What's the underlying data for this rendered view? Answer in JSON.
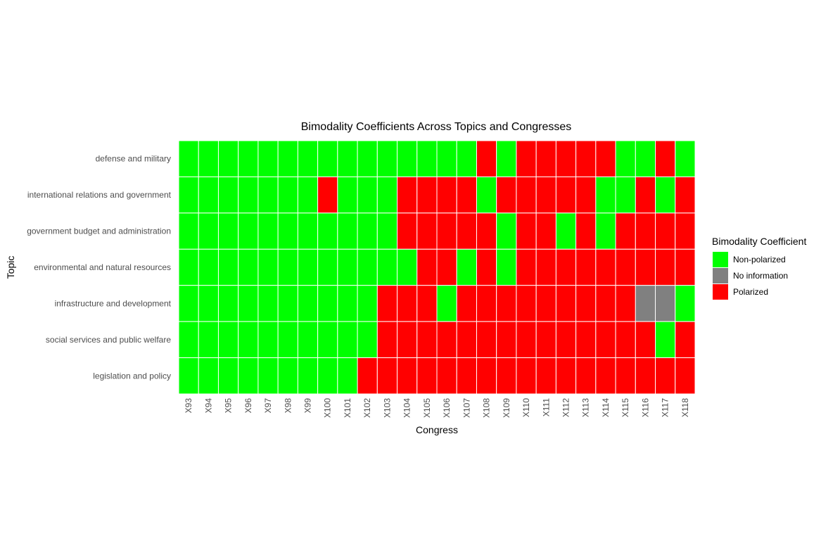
{
  "chart_data": {
    "type": "heatmap",
    "title": "Bimodality Coefficients Across Topics and Congresses",
    "xlabel": "Congress",
    "ylabel": "Topic",
    "x_categories": [
      "X93",
      "X94",
      "X95",
      "X96",
      "X97",
      "X98",
      "X99",
      "X100",
      "X101",
      "X102",
      "X103",
      "X104",
      "X105",
      "X106",
      "X107",
      "X108",
      "X109",
      "X110",
      "X111",
      "X112",
      "X113",
      "X114",
      "X115",
      "X116",
      "X117",
      "X118"
    ],
    "y_categories": [
      "defense and military",
      "international relations and government",
      "government budget and administration",
      "environmental and natural resources",
      "infrastructure and development",
      "social services and public welfare",
      "legislation and policy"
    ],
    "legend": {
      "title": "Bimodality Coefficient",
      "position": "right",
      "items": [
        {
          "code": "N",
          "label": "Non-polarized",
          "color": "#00ff00"
        },
        {
          "code": "I",
          "label": "No information",
          "color": "#808080"
        },
        {
          "code": "P",
          "label": "Polarized",
          "color": "#ff0000"
        }
      ]
    },
    "values": [
      [
        "N",
        "N",
        "N",
        "N",
        "N",
        "N",
        "N",
        "N",
        "N",
        "N",
        "N",
        "N",
        "N",
        "N",
        "N",
        "P",
        "N",
        "P",
        "P",
        "P",
        "P",
        "P",
        "N",
        "N",
        "P",
        "N"
      ],
      [
        "N",
        "N",
        "N",
        "N",
        "N",
        "N",
        "N",
        "P",
        "N",
        "N",
        "N",
        "P",
        "P",
        "P",
        "P",
        "N",
        "P",
        "P",
        "P",
        "P",
        "P",
        "N",
        "N",
        "P",
        "N",
        "P"
      ],
      [
        "N",
        "N",
        "N",
        "N",
        "N",
        "N",
        "N",
        "N",
        "N",
        "N",
        "N",
        "P",
        "P",
        "P",
        "P",
        "P",
        "N",
        "P",
        "P",
        "N",
        "P",
        "N",
        "P",
        "P",
        "P",
        "P"
      ],
      [
        "N",
        "N",
        "N",
        "N",
        "N",
        "N",
        "N",
        "N",
        "N",
        "N",
        "N",
        "N",
        "P",
        "P",
        "N",
        "P",
        "N",
        "P",
        "P",
        "P",
        "P",
        "P",
        "P",
        "P",
        "P",
        "P"
      ],
      [
        "N",
        "N",
        "N",
        "N",
        "N",
        "N",
        "N",
        "N",
        "N",
        "N",
        "P",
        "P",
        "P",
        "N",
        "P",
        "P",
        "P",
        "P",
        "P",
        "P",
        "P",
        "P",
        "P",
        "I",
        "I",
        "N"
      ],
      [
        "N",
        "N",
        "N",
        "N",
        "N",
        "N",
        "N",
        "N",
        "N",
        "N",
        "P",
        "P",
        "P",
        "P",
        "P",
        "P",
        "P",
        "P",
        "P",
        "P",
        "P",
        "P",
        "P",
        "P",
        "N",
        "P"
      ],
      [
        "N",
        "N",
        "N",
        "N",
        "N",
        "N",
        "N",
        "N",
        "N",
        "P",
        "P",
        "P",
        "P",
        "P",
        "P",
        "P",
        "P",
        "P",
        "P",
        "P",
        "P",
        "P",
        "P",
        "P",
        "P",
        "P"
      ]
    ],
    "grid": false
  }
}
